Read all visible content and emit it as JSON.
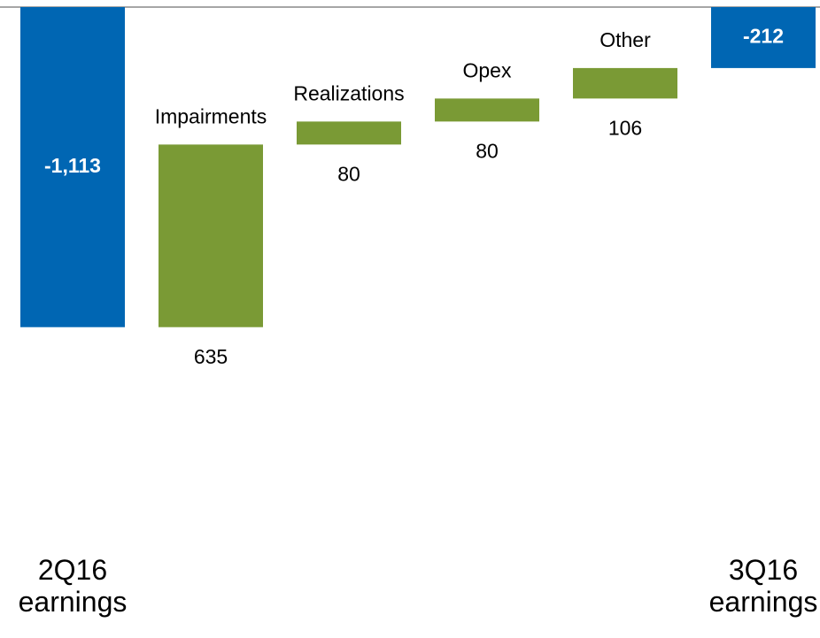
{
  "chart_data": {
    "type": "waterfall",
    "categories": [
      "2Q16 earnings",
      "Impairments",
      "Realizations",
      "Opex",
      "Other",
      "3Q16 earnings"
    ],
    "measure": [
      "absolute",
      "relative",
      "relative",
      "relative",
      "relative",
      "total"
    ],
    "values": [
      -1113,
      635,
      80,
      80,
      106,
      -212
    ],
    "value_labels": [
      "-1,113",
      "635",
      "80",
      "80",
      "106",
      "-212"
    ],
    "color": "#7a9a35",
    "total_color": "#0066b3",
    "ylim": [
      -1200,
      0
    ]
  }
}
